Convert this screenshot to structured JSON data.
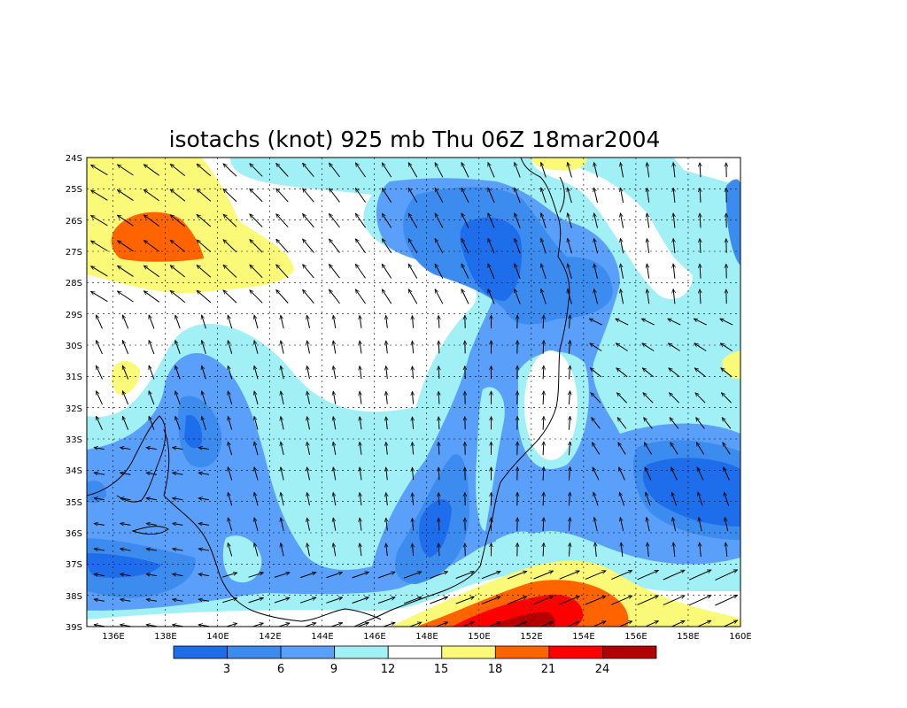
{
  "title": "isotachs (knot) 925 mb Thu 06Z 18mar2004",
  "map": {
    "projection": "lat-lon",
    "lon_range": [
      135,
      160
    ],
    "lat_range": [
      -39,
      -24
    ],
    "grid": true,
    "coastline": true,
    "wind_vectors": true
  },
  "axes": {
    "lat_labels": [
      "24S",
      "25S",
      "26S",
      "27S",
      "28S",
      "29S",
      "30S",
      "31S",
      "32S",
      "33S",
      "34S",
      "35S",
      "36S",
      "37S",
      "38S",
      "39S"
    ],
    "lon_labels": [
      "136E",
      "138E",
      "140E",
      "142E",
      "144E",
      "146E",
      "148E",
      "150E",
      "152E",
      "154E",
      "156E",
      "158E",
      "160E"
    ]
  },
  "colorbar": {
    "colors": [
      "#1e6eeb",
      "#3c8cf0",
      "#5aa0fa",
      "#a0f0f5",
      "#ffffff",
      "#fafa78",
      "#ff6400",
      "#ff0000",
      "#b40000"
    ],
    "labels": [
      "3",
      "6",
      "9",
      "12",
      "15",
      "18",
      "21",
      "24"
    ]
  },
  "chart_data": {
    "type": "heatmap",
    "title": "isotachs (knot) 925 mb Thu 06Z 18mar2004",
    "variable_units": "knot",
    "level": "925 mb",
    "contour_levels": [
      3,
      6,
      9,
      12,
      15,
      18,
      21,
      24
    ],
    "features": [
      {
        "lon": 137.5,
        "lat": -26.7,
        "value": 20
      },
      {
        "lon": 151.0,
        "lat": -27.0,
        "value": 3
      },
      {
        "lon": 158.0,
        "lat": -34.7,
        "value": 3
      },
      {
        "lon": 153.0,
        "lat": -38.7,
        "value": 23
      },
      {
        "lon": 136.3,
        "lat": -37.0,
        "value": 5
      },
      {
        "lon": 148.5,
        "lat": -35.8,
        "value": 4
      },
      {
        "lon": 139.5,
        "lat": -33.0,
        "value": 6
      },
      {
        "lon": 146.0,
        "lat": -30.0,
        "value": 14
      },
      {
        "lon": 152.5,
        "lat": -32.0,
        "value": 14
      }
    ]
  }
}
